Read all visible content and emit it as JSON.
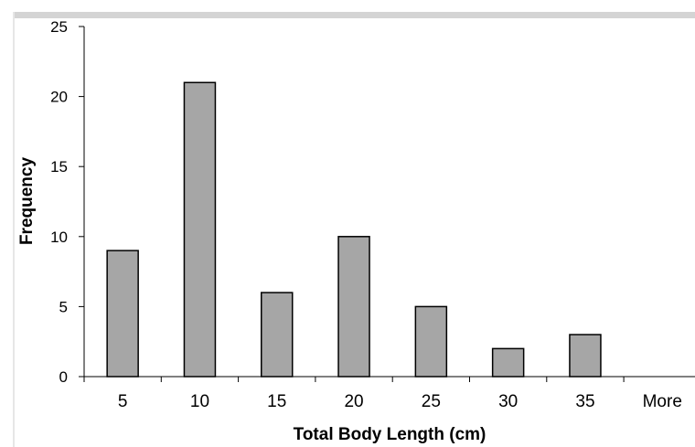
{
  "chart_data": {
    "type": "bar",
    "title": "",
    "xlabel": "Total Body Length (cm)",
    "ylabel": "Frequency",
    "categories": [
      "5",
      "10",
      "15",
      "20",
      "25",
      "30",
      "35",
      "More"
    ],
    "values": [
      9,
      21,
      6,
      10,
      5,
      2,
      3,
      0
    ],
    "ylim": [
      0,
      25
    ],
    "yticks": [
      "0",
      "5",
      "10",
      "15",
      "20",
      "25"
    ],
    "grid": false,
    "legend": "none",
    "colors": {
      "bar_fill": "#a6a6a6",
      "bar_stroke": "#000000",
      "axis": "#000000",
      "text": "#000000"
    }
  }
}
